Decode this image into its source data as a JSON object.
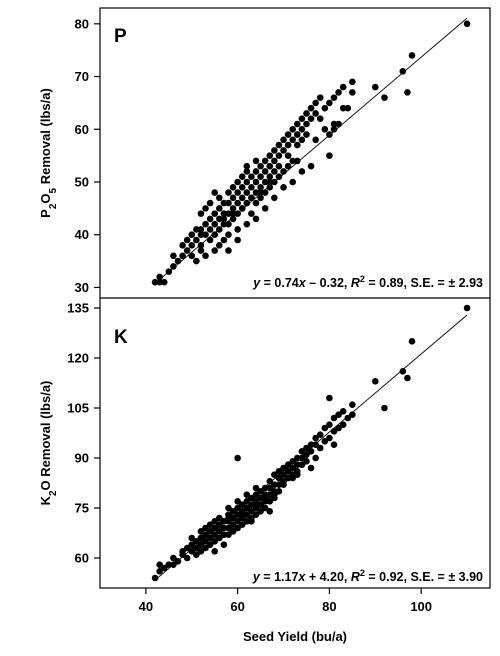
{
  "chart_data": {
    "type": "scatter",
    "xlabel": "Seed Yield (bu/a)",
    "xlim": [
      30,
      115
    ],
    "xticks": [
      40,
      60,
      80,
      100
    ],
    "grid": false,
    "legend": "none",
    "marker_color": "#000000",
    "panels": [
      {
        "label": "P",
        "ylabel": {
          "pre": "P",
          "sub1": "2",
          "mid": "O",
          "sub2": "5",
          "post": " Removal (lbs/a)"
        },
        "ylim": [
          28,
          83
        ],
        "yticks": [
          30,
          40,
          50,
          60,
          70,
          80
        ],
        "fit": {
          "slope": 0.74,
          "intercept": -0.32,
          "x_range": [
            42,
            110
          ]
        },
        "equation": {
          "y": "y",
          "p1": " = 0.74",
          "x": "x",
          "p2": " – 0.32, ",
          "R": "R",
          "sup": "2",
          "p3": " = 0.89, S.E. = ± 2.93"
        },
        "x": [
          42,
          43,
          43,
          44,
          45,
          46,
          46,
          47,
          48,
          48,
          49,
          49,
          50,
          50,
          50,
          51,
          51,
          51,
          52,
          52,
          52,
          52,
          53,
          53,
          53,
          53,
          54,
          54,
          54,
          54,
          55,
          55,
          55,
          55,
          55,
          56,
          56,
          56,
          56,
          57,
          57,
          57,
          57,
          58,
          58,
          58,
          58,
          58,
          59,
          59,
          59,
          59,
          60,
          60,
          60,
          60,
          60,
          61,
          61,
          61,
          61,
          62,
          62,
          62,
          62,
          62,
          63,
          63,
          63,
          63,
          64,
          64,
          64,
          64,
          64,
          65,
          65,
          65,
          65,
          66,
          66,
          66,
          66,
          67,
          67,
          67,
          67,
          68,
          68,
          68,
          68,
          69,
          69,
          69,
          70,
          70,
          70,
          71,
          71,
          71,
          72,
          72,
          72,
          73,
          73,
          73,
          74,
          74,
          74,
          75,
          75,
          75,
          76,
          76,
          77,
          77,
          78,
          78,
          79,
          79,
          80,
          80,
          81,
          81,
          82,
          82,
          83,
          83,
          84,
          85,
          85,
          90,
          92,
          96,
          97,
          98,
          110,
          52,
          56,
          60,
          64,
          68,
          72,
          76,
          80,
          58,
          62,
          66,
          70,
          74,
          57,
          61,
          65,
          69,
          73,
          77,
          81,
          59,
          63,
          67,
          71
        ],
        "y": [
          31,
          31,
          32,
          31,
          33,
          34,
          36,
          35,
          36,
          38,
          37,
          39,
          40,
          38,
          36,
          41,
          39,
          35,
          41,
          40,
          38,
          44,
          42,
          40,
          36,
          45,
          43,
          41,
          39,
          46,
          44,
          42,
          40,
          37,
          48,
          45,
          43,
          41,
          47,
          46,
          44,
          42,
          39,
          48,
          46,
          44,
          42,
          37,
          49,
          47,
          45,
          43,
          50,
          48,
          46,
          44,
          39,
          51,
          49,
          47,
          45,
          52,
          50,
          48,
          46,
          53,
          51,
          49,
          47,
          44,
          52,
          50,
          48,
          46,
          54,
          53,
          51,
          49,
          47,
          54,
          52,
          50,
          48,
          55,
          53,
          51,
          49,
          56,
          54,
          52,
          50,
          57,
          55,
          53,
          58,
          56,
          52,
          59,
          57,
          55,
          60,
          58,
          54,
          61,
          59,
          57,
          62,
          60,
          58,
          63,
          61,
          59,
          64,
          62,
          65,
          63,
          66,
          62,
          64,
          60,
          65,
          59,
          66,
          60,
          67,
          61,
          68,
          64,
          64,
          67,
          69,
          68,
          66,
          71,
          67,
          74,
          80,
          37,
          38,
          41,
          43,
          47,
          50,
          53,
          55,
          40,
          42,
          45,
          49,
          52,
          43,
          45,
          48,
          51,
          54,
          58,
          61,
          44,
          47,
          50,
          53
        ]
      },
      {
        "label": "K",
        "ylabel": {
          "pre": "K",
          "sub1": "2",
          "mid": "O",
          "sub2": "",
          "post": " Removal (lbs/a)"
        },
        "ylim": [
          51,
          138
        ],
        "yticks": [
          60,
          75,
          90,
          105,
          120,
          135
        ],
        "fit": {
          "slope": 1.17,
          "intercept": 4.2,
          "x_range": [
            42,
            110
          ]
        },
        "equation": {
          "y": "y",
          "p1": " = 1.17",
          "x": "x",
          "p2": " + 4.20, ",
          "R": "R",
          "sup": "2",
          "p3": " = 0.92, S.E. = ± 3.90"
        },
        "x": [
          42,
          43,
          43,
          44,
          45,
          46,
          46,
          47,
          48,
          48,
          49,
          49,
          50,
          50,
          50,
          51,
          51,
          51,
          52,
          52,
          52,
          52,
          53,
          53,
          53,
          53,
          54,
          54,
          54,
          54,
          55,
          55,
          55,
          55,
          55,
          56,
          56,
          56,
          56,
          57,
          57,
          57,
          57,
          58,
          58,
          58,
          58,
          58,
          59,
          59,
          59,
          59,
          60,
          60,
          60,
          60,
          60,
          61,
          61,
          61,
          61,
          62,
          62,
          62,
          62,
          62,
          63,
          63,
          63,
          63,
          64,
          64,
          64,
          64,
          64,
          65,
          65,
          65,
          65,
          66,
          66,
          66,
          66,
          67,
          67,
          67,
          67,
          68,
          68,
          68,
          68,
          69,
          69,
          69,
          70,
          70,
          70,
          71,
          71,
          71,
          72,
          72,
          72,
          73,
          73,
          73,
          74,
          74,
          74,
          75,
          75,
          75,
          76,
          76,
          77,
          77,
          78,
          78,
          79,
          79,
          80,
          80,
          81,
          81,
          82,
          82,
          83,
          83,
          84,
          85,
          85,
          90,
          92,
          96,
          97,
          98,
          110,
          52,
          56,
          60,
          64,
          68,
          72,
          76,
          80,
          58,
          62,
          66,
          70,
          74,
          57,
          61,
          65,
          69,
          73,
          77,
          81,
          59,
          63,
          67,
          71
        ],
        "y": [
          54,
          58,
          56,
          57,
          58,
          60,
          58,
          59,
          61,
          62,
          60,
          63,
          64,
          62,
          66,
          65,
          63,
          61,
          66,
          64,
          62,
          68,
          67,
          65,
          63,
          69,
          68,
          66,
          64,
          70,
          69,
          67,
          65,
          62,
          71,
          70,
          68,
          66,
          72,
          71,
          69,
          67,
          64,
          73,
          71,
          69,
          67,
          75,
          74,
          72,
          70,
          68,
          75,
          73,
          71,
          69,
          77,
          76,
          74,
          72,
          70,
          77,
          75,
          73,
          71,
          79,
          78,
          76,
          74,
          72,
          79,
          77,
          75,
          73,
          81,
          80,
          78,
          76,
          74,
          81,
          79,
          77,
          75,
          83,
          81,
          79,
          77,
          85,
          82,
          80,
          78,
          86,
          84,
          82,
          87,
          85,
          83,
          88,
          86,
          84,
          89,
          87,
          85,
          90,
          88,
          86,
          92,
          90,
          88,
          93,
          91,
          89,
          94,
          92,
          96,
          94,
          97,
          93,
          99,
          95,
          100,
          96,
          102,
          98,
          103,
          99,
          104,
          100,
          102,
          103,
          106,
          113,
          105,
          116,
          114,
          125,
          135,
          66,
          70,
          90,
          76,
          79,
          84,
          87,
          108,
          72,
          75,
          78,
          82,
          88,
          67,
          73,
          76,
          80,
          85,
          90,
          94,
          68,
          71,
          74,
          84
        ]
      }
    ]
  }
}
